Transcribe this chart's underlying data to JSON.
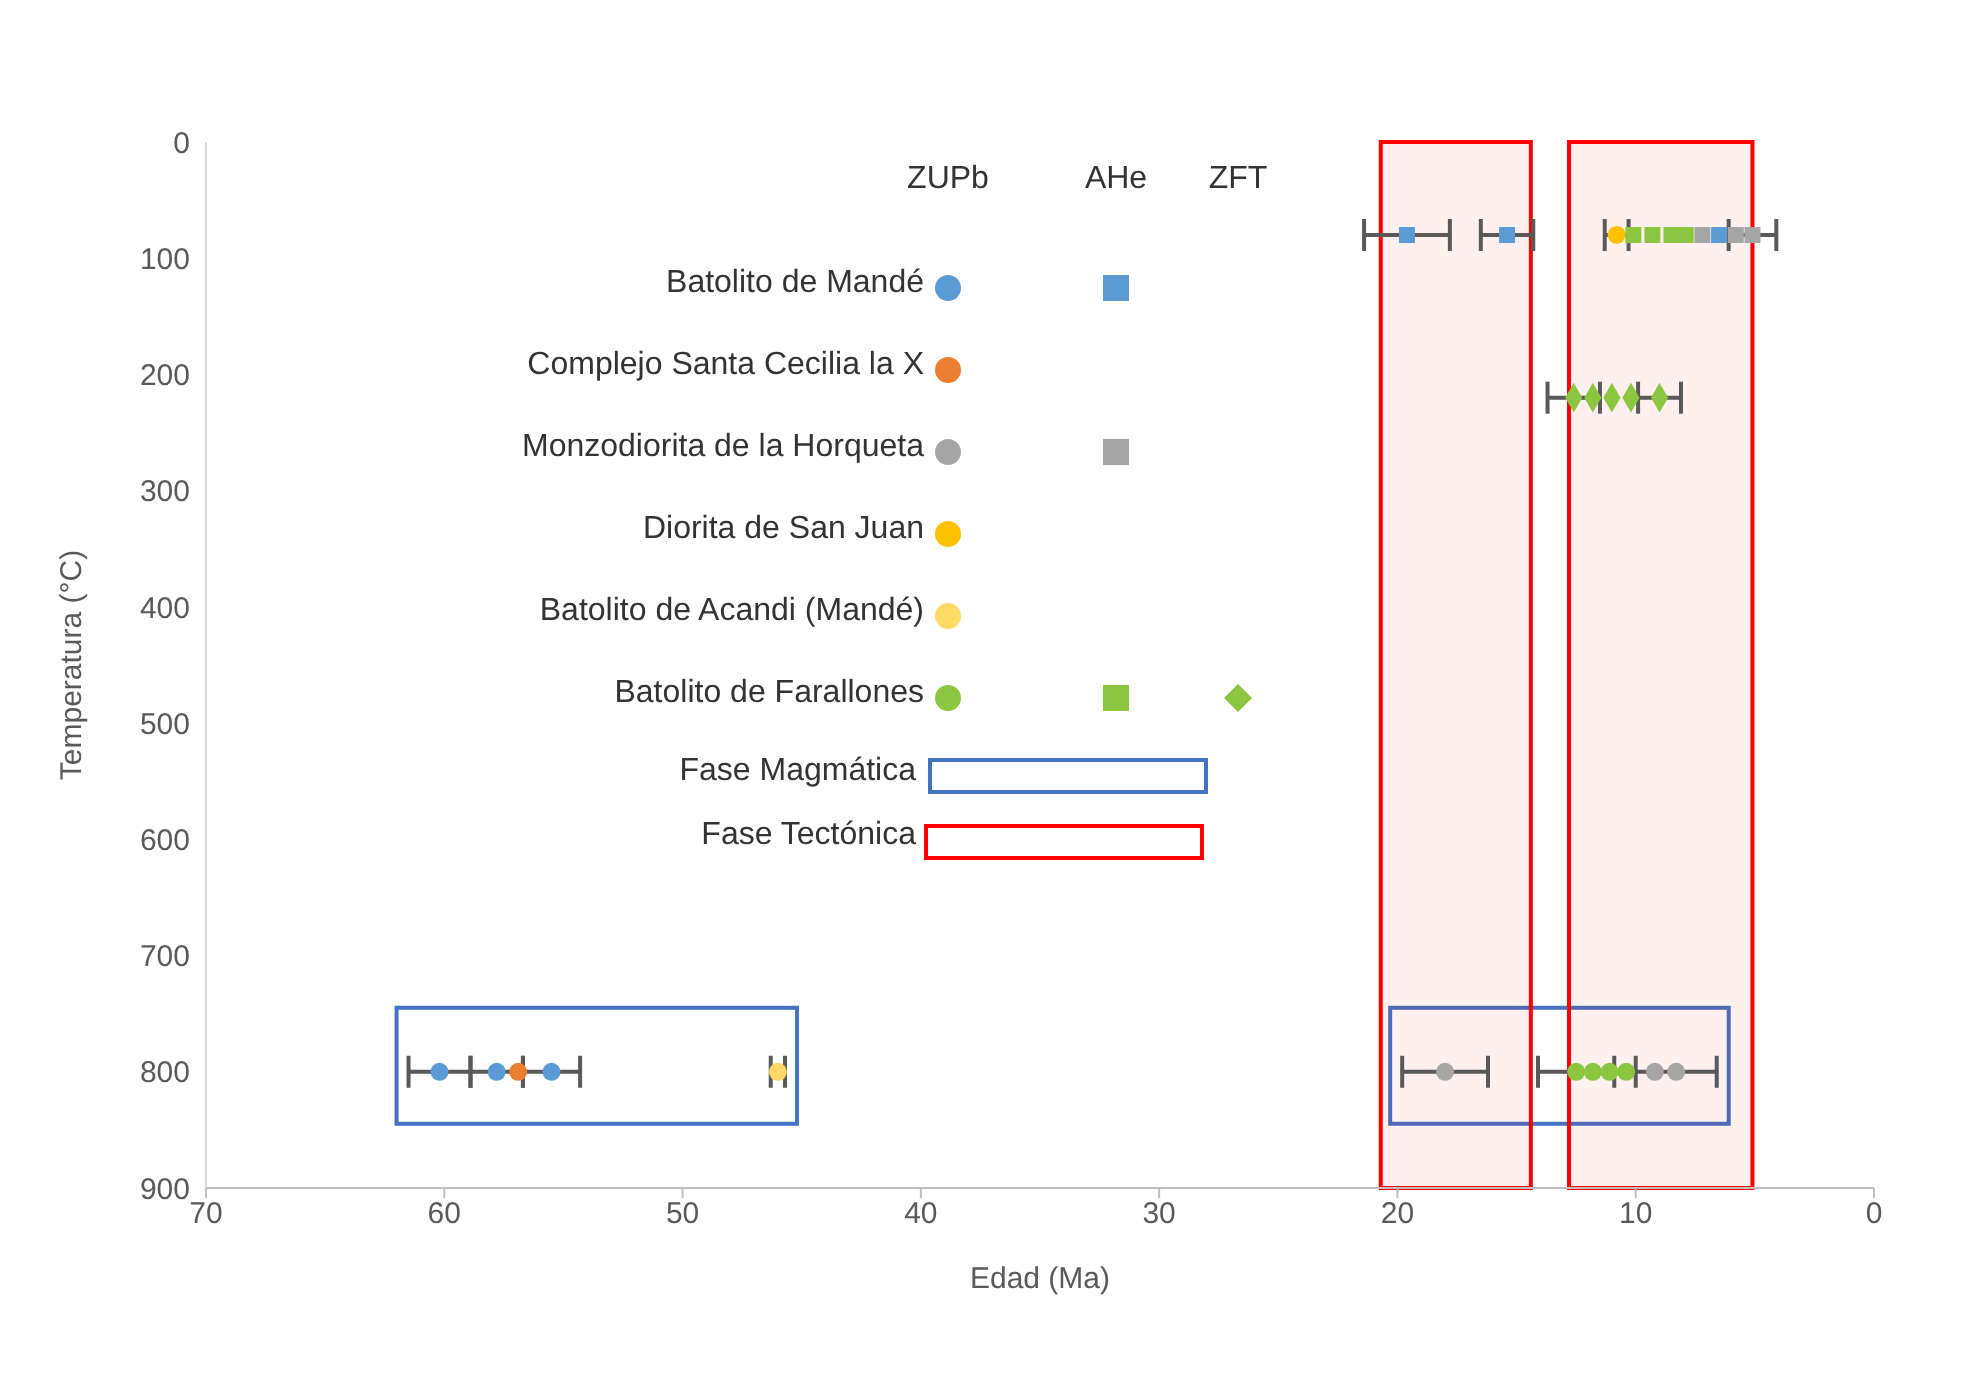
{
  "chart_data": {
    "type": "scatter",
    "xlabel": "Edad (Ma)",
    "ylabel": "Temperatura (°C)",
    "xlim": [
      70,
      0
    ],
    "xticks": [
      70,
      60,
      50,
      40,
      30,
      20,
      10,
      0
    ],
    "ylim": [
      900,
      0
    ],
    "yticks": [
      0,
      100,
      200,
      300,
      400,
      500,
      600,
      700,
      800,
      900
    ],
    "grid": false,
    "legend": "top left",
    "annotations": [
      "ZUPb",
      "AHe",
      "ZFT",
      "Fase Magmática",
      "Fase Tectónica"
    ],
    "series": [
      {
        "name": "Batolito de Mandé",
        "marker": "circle",
        "color": "#5b9bd5",
        "x": [
          60.2,
          57.8,
          55.5
        ],
        "values": [
          800,
          800,
          800
        ],
        "xerrors": [
          1.3,
          1.1,
          1.2
        ]
      },
      {
        "marker": "square",
        "color": "#5b9bd5",
        "x": [
          19.6,
          15.4,
          6.5
        ],
        "values": [
          80,
          80,
          80
        ],
        "xerrors": [
          1.8,
          1.1,
          null
        ]
      },
      {
        "name": "Complejo Santa Cecilia la X",
        "marker": "circle",
        "color": "#ed7d31",
        "x": [
          56.9
        ],
        "values": [
          800
        ],
        "xerrors": [
          null
        ]
      },
      {
        "name": "Monzodiorita de la Horqueta",
        "marker": "circle",
        "color": "#a5a5a5",
        "x": [
          18.0,
          9.2,
          8.3
        ],
        "values": [
          800,
          800,
          800
        ],
        "xerrors": [
          1.8,
          null,
          1.7
        ]
      },
      {
        "marker": "square",
        "color": "#a5a5a5",
        "x": [
          7.2,
          5.8,
          5.1
        ],
        "values": [
          80,
          80,
          80
        ],
        "xerrors": [
          null,
          null,
          1.0
        ]
      },
      {
        "name": "Diorita de San Juan",
        "marker": "circle",
        "color": "#ffc000",
        "x": [
          10.8
        ],
        "values": [
          80
        ],
        "xerrors": [
          0.5
        ]
      },
      {
        "name": "Batolito de Acandi (Mandé)",
        "marker": "circle",
        "color": "#ffd966",
        "x": [
          46.0
        ],
        "values": [
          800
        ],
        "xerrors": [
          0.3
        ]
      },
      {
        "name": "Batolito de Farallones",
        "marker": "circle",
        "color": "#8cc540",
        "x": [
          12.5,
          11.8,
          11.1,
          10.4
        ],
        "values": [
          800,
          800,
          800,
          800
        ],
        "xerrors": [
          1.6,
          null,
          null,
          null
        ]
      },
      {
        "marker": "square",
        "color": "#8cc540",
        "x": [
          10.1,
          9.3,
          8.5,
          7.9
        ],
        "values": [
          80,
          80,
          80,
          80
        ],
        "xerrors": [
          null,
          null,
          null,
          null
        ]
      },
      {
        "marker": "diamond",
        "color": "#8cc540",
        "x": [
          12.6,
          11.8,
          11.0,
          10.2,
          9.0
        ],
        "values": [
          220,
          220,
          220,
          220,
          220
        ],
        "xerrors": [
          1.1,
          null,
          null,
          null,
          0.9
        ]
      }
    ],
    "bands": [
      {
        "axis": "x",
        "from": 20.7,
        "to": 14.4,
        "color": "#ff0000"
      },
      {
        "axis": "x",
        "from": 12.8,
        "to": 5.1,
        "color": "#ff0000"
      }
    ]
  }
}
